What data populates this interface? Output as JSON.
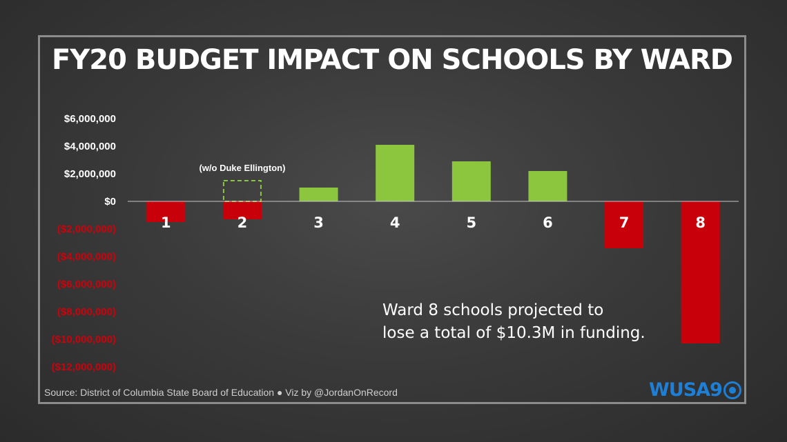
{
  "title": "FY20 BUDGET IMPACT ON SCHOOLS BY WARD",
  "source": "Source: District of Columbia State Board of Education  ●  Viz by @JordanOnRecord",
  "callout": {
    "line1": "Ward 8 schools projected to",
    "line2": "lose a total of $10.3M in funding."
  },
  "logo": {
    "text": "WUSA9",
    "color": "#1e7fd6"
  },
  "colors": {
    "positive": "#8cc63f",
    "negative": "#c8000a",
    "negative_label": "#d0000a",
    "axis_label": "#ffffff"
  },
  "chart_data": {
    "type": "bar",
    "title": "FY20 BUDGET IMPACT ON SCHOOLS BY WARD",
    "categories": [
      "1",
      "2",
      "3",
      "4",
      "5",
      "6",
      "7",
      "8"
    ],
    "values": [
      -1500000,
      -1300000,
      1000000,
      4100000,
      2900000,
      2200000,
      -3400000,
      -10300000
    ],
    "ylim": [
      -12000000,
      6000000
    ],
    "yticks": [
      6000000,
      4000000,
      2000000,
      0,
      -2000000,
      -4000000,
      -6000000,
      -8000000,
      -10000000,
      -12000000
    ],
    "ytick_labels": [
      "$6,000,000",
      "$4,000,000",
      "$2,000,000",
      "$0",
      "($2,000,000)",
      "($4,000,000)",
      "($6,000,000)",
      "($8,000,000)",
      "($10,000,000)",
      "($12,000,000)"
    ],
    "annotation": {
      "category": "2",
      "label": "(w/o Duke Ellington)",
      "value": 1500000,
      "style": "dashed-outline"
    },
    "grid": false,
    "legend": "none"
  }
}
